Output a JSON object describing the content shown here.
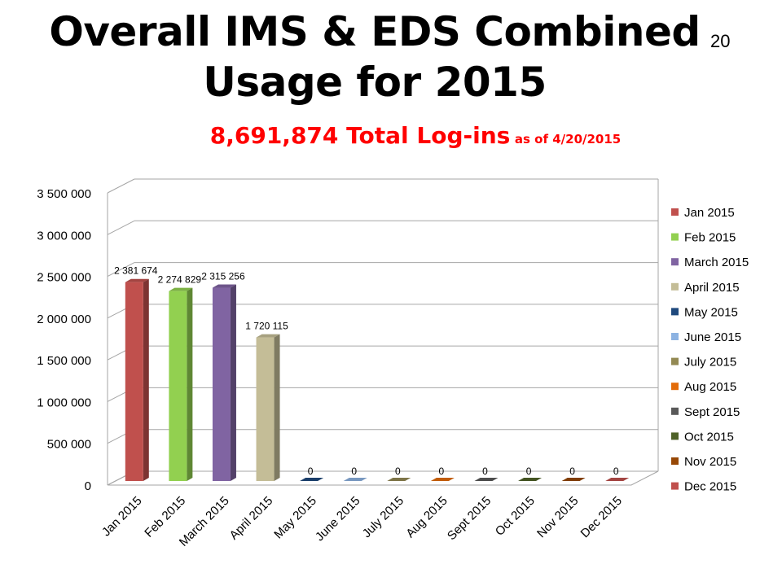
{
  "slide": {
    "title": "Overall IMS & EDS Combined Usage for 2015",
    "number": "20",
    "subtitle_main": "8,691,874 Total Log-ins",
    "subtitle_suffix": "as of 4/20/2015"
  },
  "chart_data": {
    "type": "bar",
    "categories": [
      "Jan 2015",
      "Feb 2015",
      "March 2015",
      "April 2015",
      "May 2015",
      "June 2015",
      "July 2015",
      "Aug 2015",
      "Sept 2015",
      "Oct 2015",
      "Nov 2015",
      "Dec 2015"
    ],
    "values": [
      2381674,
      2274829,
      2315256,
      1720115,
      0,
      0,
      0,
      0,
      0,
      0,
      0,
      0
    ],
    "data_labels": [
      "2 381 674",
      "2 274 829",
      "2 315 256",
      "1 720 115",
      "0",
      "0",
      "0",
      "0",
      "0",
      "0",
      "0",
      "0"
    ],
    "colors": [
      "#c0504d",
      "#92d050",
      "#8064a2",
      "#c4bd97",
      "#1f497d",
      "#8db3e2",
      "#938953",
      "#e36c09",
      "#595959",
      "#4f6228",
      "#974806",
      "#c0504d"
    ],
    "ylim": [
      0,
      3500000
    ],
    "yticks": [
      0,
      500000,
      1000000,
      1500000,
      2000000,
      2500000,
      3000000,
      3500000
    ],
    "ytick_labels": [
      "0",
      "500 000",
      "1 000 000",
      "1 500 000",
      "2 000 000",
      "2 500 000",
      "3 000 000",
      "3 500 000"
    ],
    "grid": true,
    "legend_position": "right",
    "xlabel": "",
    "ylabel": ""
  }
}
